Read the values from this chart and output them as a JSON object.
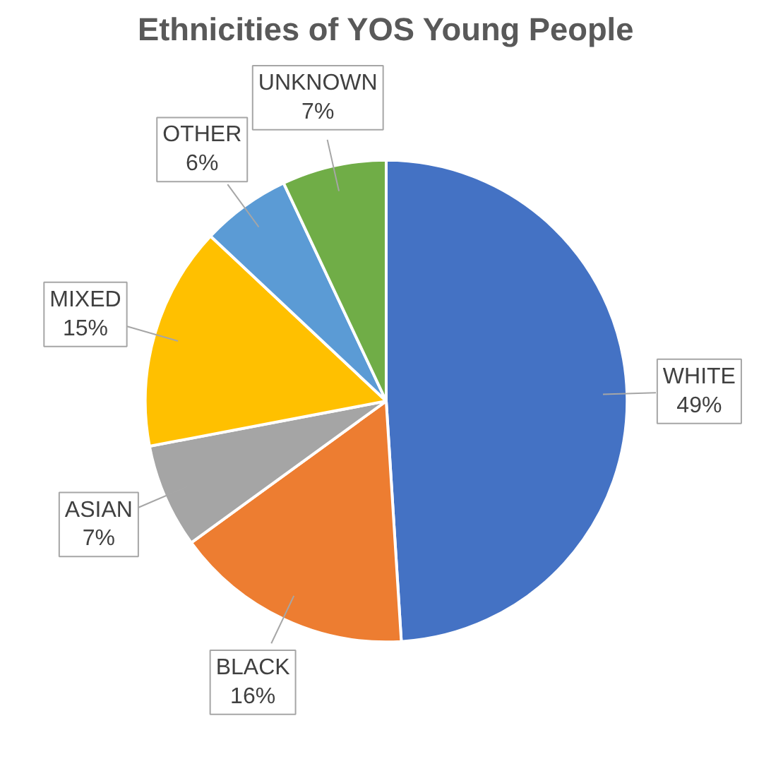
{
  "chart_data": {
    "type": "pie",
    "title": "Ethnicities of YOS Young People",
    "categories": [
      "WHITE",
      "BLACK",
      "ASIAN",
      "MIXED",
      "OTHER",
      "UNKNOWN"
    ],
    "values": [
      49,
      16,
      7,
      15,
      6,
      7
    ],
    "colors": [
      "#4472c4",
      "#ed7d31",
      "#a5a5a5",
      "#ffc000",
      "#5b9bd5",
      "#70ad47"
    ],
    "value_labels": [
      "49%",
      "16%",
      "7%",
      "15%",
      "6%",
      "7%"
    ]
  }
}
